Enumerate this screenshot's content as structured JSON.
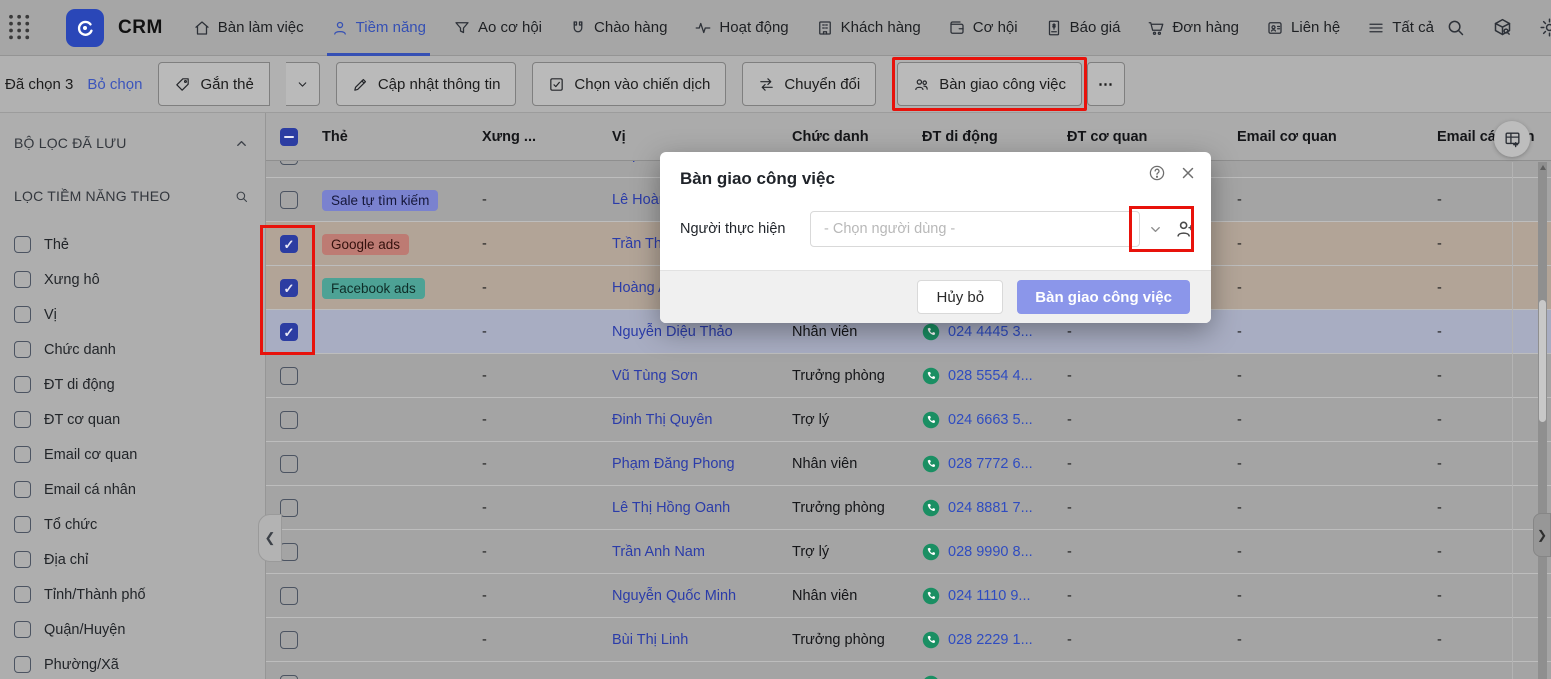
{
  "topbar": {
    "brand": "CRM",
    "nav": [
      {
        "label": "Bàn làm việc",
        "icon": "home",
        "active": false
      },
      {
        "label": "Tiềm năng",
        "icon": "person",
        "active": true
      },
      {
        "label": "Ao cơ hội",
        "icon": "funnel",
        "active": false
      },
      {
        "label": "Chào hàng",
        "icon": "magnet",
        "active": false
      },
      {
        "label": "Hoạt động",
        "icon": "pulse",
        "active": false
      },
      {
        "label": "Khách hàng",
        "icon": "building",
        "active": false
      },
      {
        "label": "Cơ hội",
        "icon": "wallet",
        "active": false
      },
      {
        "label": "Báo giá",
        "icon": "invoice",
        "active": false
      },
      {
        "label": "Đơn hàng",
        "icon": "cart",
        "active": false
      },
      {
        "label": "Liên hệ",
        "icon": "contact-card",
        "active": false
      },
      {
        "label": "Tất cả",
        "icon": "menu",
        "active": false
      }
    ]
  },
  "toolbar": {
    "selected_label": "Đã chọn 3",
    "deselect_label": "Bỏ chọn",
    "tag_button": "Gắn thẻ",
    "update_button": "Cập nhật thông tin",
    "campaign_button": "Chọn vào chiến dịch",
    "convert_button": "Chuyển đổi",
    "assign_button": "Bàn giao công việc",
    "more_button": "⋯"
  },
  "sidebar": {
    "saved_filters_title": "BỘ LỌC ĐÃ LƯU",
    "filter_by_title": "LỌC TIỀM NĂNG THEO",
    "items": [
      {
        "label": "Thẻ"
      },
      {
        "label": "Xưng hô"
      },
      {
        "label": "Vị"
      },
      {
        "label": "Chức danh"
      },
      {
        "label": "ĐT di động"
      },
      {
        "label": "ĐT cơ quan"
      },
      {
        "label": "Email cơ quan"
      },
      {
        "label": "Email cá nhân"
      },
      {
        "label": "Tổ chức"
      },
      {
        "label": "Địa chỉ"
      },
      {
        "label": "Tỉnh/Thành phố"
      },
      {
        "label": "Quận/Huyện"
      },
      {
        "label": "Phường/Xã"
      }
    ]
  },
  "table": {
    "columns": [
      {
        "label": ""
      },
      {
        "label": "Thẻ"
      },
      {
        "label": "Xưng ..."
      },
      {
        "label": "Vị"
      },
      {
        "label": "Chức danh"
      },
      {
        "label": "ĐT di động"
      },
      {
        "label": "ĐT cơ quan"
      },
      {
        "label": "Email cơ quan"
      },
      {
        "label": "Email cá nhân"
      }
    ],
    "rows": [
      {
        "variant": "partial-top",
        "bg": "default",
        "checked": false,
        "name": "Phạm Thị ...",
        "xung": "",
        "role": "",
        "phone": "",
        "dtcq": "",
        "emailcq": "",
        "emailcn": ""
      },
      {
        "bg": "default",
        "checked": false,
        "tag": {
          "label": "Sale tự tìm kiếm",
          "color": "indigo"
        },
        "xung": "-",
        "name": "Lê Hoàng",
        "role": "",
        "phone": "",
        "dtcq": "-",
        "emailcq": "-",
        "emailcn": "-"
      },
      {
        "bg": "warm",
        "checked": true,
        "tag": {
          "label": "Google ads",
          "color": "red"
        },
        "xung": "-",
        "name": "Trần Thị N",
        "role": "",
        "phone": "",
        "dtcq": "-",
        "emailcq": "-",
        "emailcn": "-"
      },
      {
        "bg": "warm",
        "checked": true,
        "tag": {
          "label": "Facebook ads",
          "color": "teal"
        },
        "xung": "-",
        "name": "Hoàng Anh",
        "role": "",
        "phone": "",
        "dtcq": "-",
        "emailcq": "-",
        "emailcn": "-"
      },
      {
        "bg": "blue",
        "checked": true,
        "xung": "-",
        "name": "Nguyễn Diệu Thảo",
        "role": "Nhân viên",
        "phone": "024 4445 3...",
        "dtcq": "-",
        "emailcq": "-",
        "emailcn": "-"
      },
      {
        "bg": "default",
        "checked": false,
        "xung": "-",
        "name": "Vũ Tùng Sơn",
        "role": "Trưởng phòng",
        "phone": "028 5554 4...",
        "dtcq": "-",
        "emailcq": "-",
        "emailcn": "-"
      },
      {
        "bg": "default",
        "checked": false,
        "xung": "-",
        "name": "Đinh Thị Quyên",
        "role": "Trợ lý",
        "phone": "024 6663 5...",
        "dtcq": "-",
        "emailcq": "-",
        "emailcn": "-"
      },
      {
        "bg": "default",
        "checked": false,
        "xung": "-",
        "name": "Phạm Đăng Phong",
        "role": "Nhân viên",
        "phone": "028 7772 6...",
        "dtcq": "-",
        "emailcq": "-",
        "emailcn": "-"
      },
      {
        "bg": "default",
        "checked": false,
        "xung": "-",
        "name": "Lê Thị Hồng Oanh",
        "role": "Trưởng phòng",
        "phone": "024 8881 7...",
        "dtcq": "-",
        "emailcq": "-",
        "emailcn": "-"
      },
      {
        "bg": "default",
        "checked": false,
        "xung": "-",
        "name": "Trần Anh Nam",
        "role": "Trợ lý",
        "phone": "028 9990 8...",
        "dtcq": "-",
        "emailcq": "-",
        "emailcn": "-"
      },
      {
        "bg": "default",
        "checked": false,
        "xung": "-",
        "name": "Nguyễn Quốc Minh",
        "role": "Nhân viên",
        "phone": "024 1110 9...",
        "dtcq": "-",
        "emailcq": "-",
        "emailcn": "-"
      },
      {
        "bg": "default",
        "checked": false,
        "xung": "-",
        "name": "Bùi Thị Linh",
        "role": "Trưởng phòng",
        "phone": "028 2229 1...",
        "dtcq": "-",
        "emailcq": "-",
        "emailcn": "-"
      },
      {
        "variant": "partial-bottom",
        "bg": "default",
        "checked": false,
        "name": "",
        "xung": "",
        "role": "",
        "phone": " ",
        "dtcq": "",
        "emailcq": "",
        "emailcn": ""
      }
    ]
  },
  "modal": {
    "title": "Bàn giao công việc",
    "assignee_label": "Người thực hiện",
    "assignee_placeholder": "- Chọn người dùng -",
    "cancel_label": "Hủy bỏ",
    "submit_label": "Bàn giao công việc"
  },
  "annotations": {
    "color": "#e8120b",
    "boxes": [
      "assign-work-button",
      "selected-row-checkboxes",
      "user-picker-icons"
    ]
  },
  "colors": {
    "accent": "#3550b4",
    "primary_button": "#8b96ea",
    "checkbox_checked": "#2c3da2",
    "phone_icon": "#1a8f63",
    "tag_indigo": "#7a82cf",
    "tag_red": "#bd7b73",
    "tag_teal": "#4da295",
    "row_warm": "#b2a497",
    "row_blue": "#a8adc2",
    "annotation_red": "#e8120b"
  }
}
